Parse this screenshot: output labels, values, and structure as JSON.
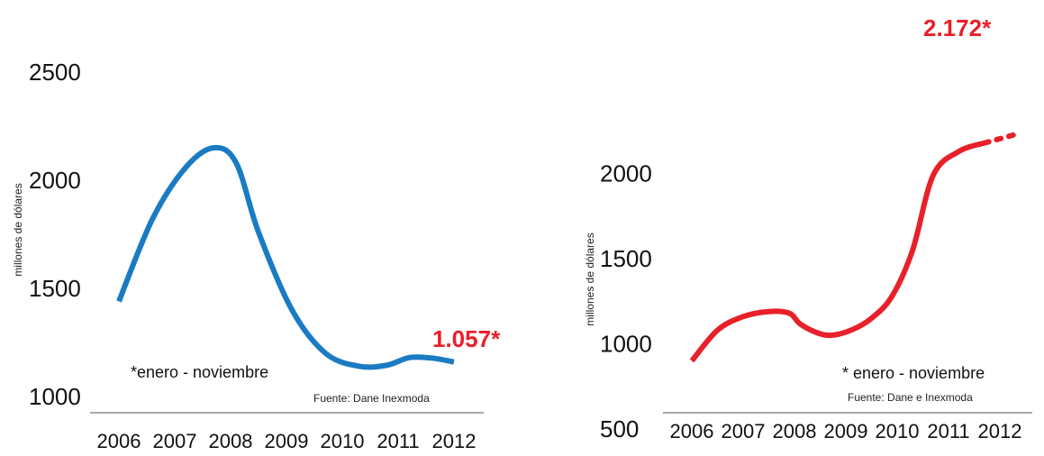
{
  "chart_data": [
    {
      "type": "line",
      "ylabel": "millones de dólares",
      "categories": [
        "2006",
        "2007",
        "2008",
        "2009",
        "2010",
        "2011",
        "2012"
      ],
      "y_ticks": [
        "2500",
        "2000",
        "1500",
        "1000"
      ],
      "ylim": [
        1000,
        2500
      ],
      "series": [
        {
          "color": "#1a7bc2",
          "x": [
            2006,
            2006.6,
            2007.2,
            2007.7,
            2008.1,
            2008.5,
            2009.1,
            2009.7,
            2010.3,
            2010.8,
            2011.2,
            2011.6,
            2012
          ],
          "y": [
            1440,
            1820,
            2060,
            2150,
            2080,
            1760,
            1400,
            1200,
            1140,
            1145,
            1180,
            1178,
            1160
          ]
        }
      ],
      "callout": {
        "text": "1.057*",
        "color": "#e8202a"
      },
      "note": "*enero - noviembre",
      "source": "Fuente: Dane Inexmoda"
    },
    {
      "type": "line",
      "ylabel": "millones de dólares",
      "categories": [
        "2006",
        "2007",
        "2008",
        "2009",
        "2010",
        "2011",
        "2012"
      ],
      "y_ticks": [
        "2000",
        "1500",
        "1000",
        "500"
      ],
      "ylim": [
        500,
        2300
      ],
      "series": [
        {
          "color": "#e8202a",
          "x": [
            2006,
            2006.5,
            2007,
            2007.5,
            2007.9,
            2008.1,
            2008.4,
            2008.7,
            2009.1,
            2009.5,
            2009.9,
            2010.3,
            2010.7,
            2011.2,
            2011.7
          ],
          "y": [
            900,
            1080,
            1160,
            1190,
            1180,
            1120,
            1070,
            1050,
            1080,
            1150,
            1280,
            1550,
            1990,
            2130,
            2180
          ],
          "dotted_extension": {
            "x": [
              2011.7,
              2012.3
            ],
            "y": [
              2180,
              2230
            ]
          }
        }
      ],
      "callout": {
        "text": "2.172*",
        "color": "#e8202a"
      },
      "note": "* enero - noviembre",
      "source": "Fuente: Dane e Inexmoda"
    }
  ]
}
